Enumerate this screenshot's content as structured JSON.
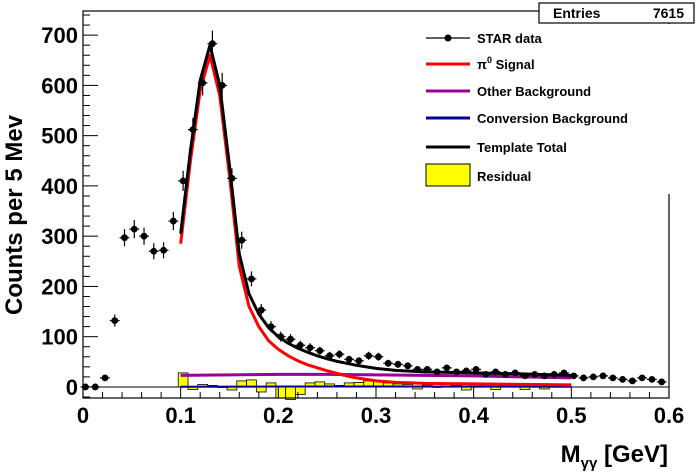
{
  "stats": {
    "label": "Entries",
    "value": "7615"
  },
  "chart_data": {
    "type": "scatter",
    "xlabel": "Mγγ [GeV]",
    "xlabel_main": "M",
    "xlabel_sub": "γγ",
    "xlabel_unit": " [GeV]",
    "ylabel": "Counts per 5 Mev",
    "xlim": [
      0,
      0.6
    ],
    "ylim": [
      -22,
      748
    ],
    "xticks": [
      0,
      0.1,
      0.2,
      0.3,
      0.4,
      0.5,
      0.6
    ],
    "xtick_labels": [
      "0",
      "0.1",
      "0.2",
      "0.3",
      "0.4",
      "0.5",
      "0.6"
    ],
    "yticks": [
      0,
      100,
      200,
      300,
      400,
      500,
      600,
      700
    ],
    "ytick_labels": [
      "0",
      "100",
      "200",
      "300",
      "400",
      "500",
      "600",
      "700"
    ],
    "legend_position": "top-right",
    "legend": [
      {
        "label": "STAR data",
        "style": "marker",
        "color": "#000000"
      },
      {
        "label": "π⁰ Signal",
        "label_main": "π",
        "label_sup": "0",
        "label_rest": " Signal",
        "style": "line",
        "color": "#ff0000"
      },
      {
        "label": "Other Background",
        "style": "line",
        "color": "#990099"
      },
      {
        "label": "Conversion Background",
        "style": "line",
        "color": "#000099"
      },
      {
        "label": "Template Total",
        "style": "line",
        "color": "#000000"
      },
      {
        "label": "Residual",
        "style": "box",
        "color": "#ffff00"
      }
    ],
    "series": [
      {
        "name": "STAR data",
        "type": "errorbar",
        "x": [
          0.0025,
          0.0125,
          0.0225,
          0.0325,
          0.0425,
          0.0525,
          0.0625,
          0.0725,
          0.0825,
          0.0925,
          0.1025,
          0.1125,
          0.1225,
          0.1325,
          0.1425,
          0.1525,
          0.1625,
          0.1725,
          0.1825,
          0.1925,
          0.2025,
          0.2125,
          0.2225,
          0.2325,
          0.2425,
          0.2525,
          0.2625,
          0.2725,
          0.2825,
          0.2925,
          0.3025,
          0.3125,
          0.3225,
          0.3325,
          0.3425,
          0.3525,
          0.3625,
          0.3725,
          0.3825,
          0.3925,
          0.4025,
          0.4125,
          0.4225,
          0.4325,
          0.4425,
          0.4525,
          0.4625,
          0.4725,
          0.4825,
          0.4925,
          0.5025,
          0.5125,
          0.5225,
          0.5325,
          0.5425,
          0.5525,
          0.5625,
          0.5725,
          0.5825,
          0.5925
        ],
        "y": [
          0,
          0,
          18,
          132,
          297,
          314,
          300,
          270,
          272,
          330,
          410,
          512,
          605,
          683,
          600,
          415,
          292,
          215,
          153,
          120,
          100,
          95,
          83,
          78,
          72,
          62,
          65,
          55,
          52,
          62,
          60,
          47,
          45,
          42,
          35,
          35,
          30,
          38,
          30,
          32,
          35,
          25,
          30,
          25,
          28,
          22,
          25,
          22,
          25,
          28,
          22,
          18,
          20,
          22,
          18,
          15,
          12,
          18,
          15,
          10
        ],
        "yerr": [
          3,
          3,
          5,
          12,
          17,
          18,
          17,
          16,
          16,
          18,
          20,
          23,
          25,
          26,
          25,
          20,
          17,
          15,
          12,
          11,
          10,
          10,
          9,
          9,
          8,
          8,
          8,
          7,
          7,
          8,
          8,
          7,
          7,
          6,
          6,
          6,
          5,
          6,
          5,
          6,
          6,
          5,
          5,
          5,
          5,
          5,
          5,
          5,
          5,
          5,
          5,
          4,
          4,
          5,
          4,
          4,
          4,
          4,
          4,
          3
        ]
      },
      {
        "name": "π⁰ Signal",
        "type": "line",
        "color": "#ff0000",
        "x": [
          0.1,
          0.11,
          0.12,
          0.13,
          0.14,
          0.15,
          0.16,
          0.17,
          0.18,
          0.19,
          0.2,
          0.21,
          0.22,
          0.23,
          0.24,
          0.25,
          0.26,
          0.27,
          0.28,
          0.3,
          0.32,
          0.35,
          0.4,
          0.45,
          0.5
        ],
        "y": [
          285,
          450,
          590,
          660,
          580,
          420,
          240,
          160,
          120,
          92,
          75,
          62,
          52,
          44,
          38,
          32,
          27,
          22,
          18,
          12,
          9,
          7,
          6,
          5,
          4
        ]
      },
      {
        "name": "Other Background",
        "type": "line",
        "color": "#990099",
        "x": [
          0.1,
          0.15,
          0.2,
          0.25,
          0.3,
          0.35,
          0.4,
          0.45,
          0.5
        ],
        "y": [
          23,
          24,
          25,
          25,
          24,
          23,
          22,
          20,
          18
        ]
      },
      {
        "name": "Conversion Background",
        "type": "line",
        "color": "#000099",
        "x": [
          0.1,
          0.2,
          0.3,
          0.4,
          0.5
        ],
        "y": [
          0.5,
          0.8,
          0.8,
          0.7,
          0.5
        ]
      },
      {
        "name": "Template Total",
        "type": "line",
        "color": "#000000",
        "x": [
          0.1,
          0.11,
          0.12,
          0.13,
          0.14,
          0.15,
          0.16,
          0.17,
          0.18,
          0.19,
          0.2,
          0.21,
          0.22,
          0.23,
          0.24,
          0.25,
          0.26,
          0.27,
          0.28,
          0.3,
          0.32,
          0.35,
          0.4,
          0.45,
          0.5
        ],
        "y": [
          305,
          470,
          610,
          680,
          600,
          440,
          265,
          185,
          145,
          118,
          100,
          87,
          77,
          69,
          62,
          56,
          51,
          47,
          43,
          37,
          33,
          30,
          28,
          26,
          23
        ]
      },
      {
        "name": "Residual",
        "type": "histogram",
        "color": "#ffff00",
        "x": [
          0.1025,
          0.1125,
          0.1225,
          0.1325,
          0.1425,
          0.1525,
          0.1625,
          0.1725,
          0.1825,
          0.1925,
          0.2025,
          0.2125,
          0.2225,
          0.2325,
          0.2425,
          0.2525,
          0.2625,
          0.2725,
          0.2825,
          0.2925,
          0.3025,
          0.3125,
          0.3225,
          0.3325,
          0.3425,
          0.3525,
          0.3625,
          0.3725,
          0.3825,
          0.3925,
          0.4025,
          0.4125,
          0.4225,
          0.4325,
          0.4425,
          0.4525,
          0.4625,
          0.4725,
          0.4825,
          0.4925
        ],
        "y": [
          28,
          -5,
          5,
          3,
          0,
          -6,
          12,
          14,
          -10,
          8,
          -22,
          -25,
          -15,
          8,
          10,
          6,
          3,
          8,
          9,
          12,
          11,
          8,
          6,
          5,
          -4,
          4,
          0,
          5,
          3,
          -6,
          6,
          4,
          -5,
          3,
          2,
          -5,
          3,
          -4,
          5,
          4
        ]
      }
    ]
  }
}
